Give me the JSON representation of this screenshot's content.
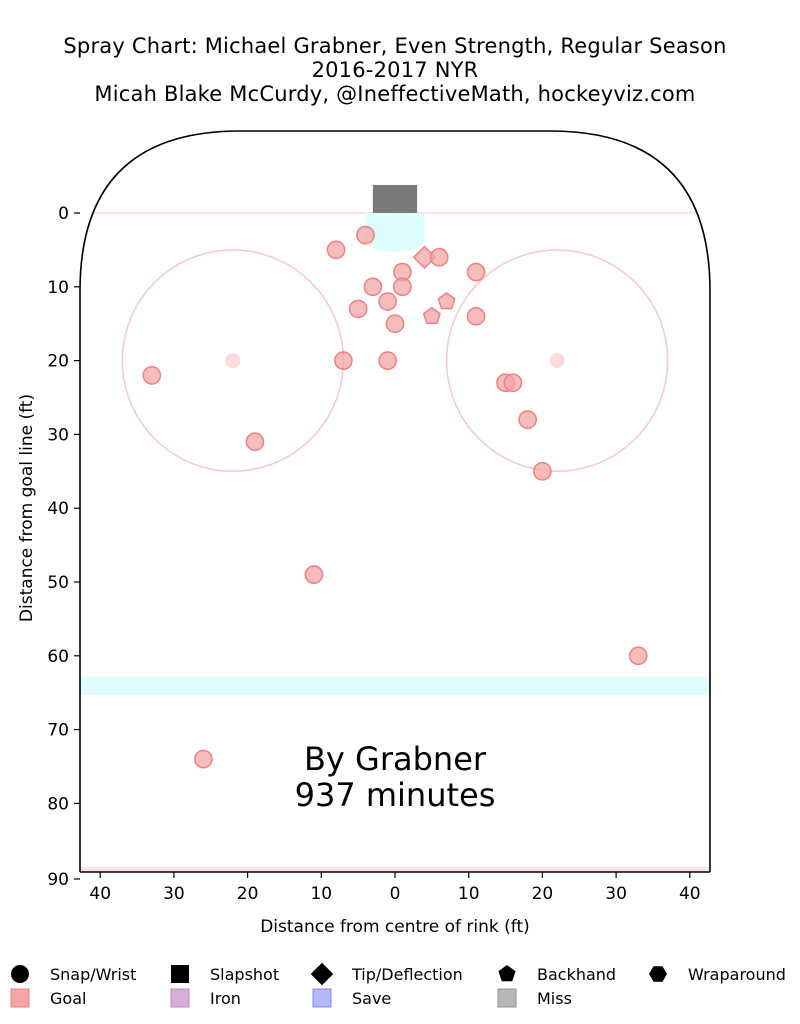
{
  "chart_data": {
    "type": "scatter",
    "title": "Spray Chart: Michael Grabner, Even Strength, Regular Season",
    "subtitle": "2016-2017 NYR",
    "credit": "Micah Blake McCurdy, @IneffectiveMath, hockeyviz.com",
    "xlabel": "Distance from centre of rink (ft)",
    "ylabel": "Distance from goal line (ft)",
    "xlim": [
      -42.5,
      42.5
    ],
    "ylim": [
      90,
      -11
    ],
    "x_ticks": [
      -40,
      -30,
      -20,
      -10,
      0,
      10,
      20,
      30,
      40
    ],
    "x_tick_labels": [
      "40",
      "30",
      "20",
      "10",
      "0",
      "10",
      "20",
      "30",
      "40"
    ],
    "y_ticks": [
      0,
      10,
      20,
      30,
      40,
      50,
      60,
      70,
      80,
      90
    ],
    "y_tick_labels": [
      "0",
      "10",
      "20",
      "30",
      "40",
      "50",
      "60",
      "70",
      "80",
      "90"
    ],
    "annotation": [
      "By Grabner",
      "937 minutes"
    ],
    "faceoff_circles": [
      {
        "x": -22,
        "y": 20,
        "r": 15
      },
      {
        "x": 22,
        "y": 20,
        "r": 15
      }
    ],
    "series": [
      {
        "name": "Goal",
        "color": "#f08080",
        "points": [
          {
            "x": -4,
            "y": 3,
            "shape": "circle"
          },
          {
            "x": -8,
            "y": 5,
            "shape": "circle"
          },
          {
            "x": 4,
            "y": 6,
            "shape": "diamond"
          },
          {
            "x": 6,
            "y": 6,
            "shape": "circle"
          },
          {
            "x": 1,
            "y": 8,
            "shape": "circle"
          },
          {
            "x": 11,
            "y": 8,
            "shape": "circle"
          },
          {
            "x": -3,
            "y": 10,
            "shape": "circle"
          },
          {
            "x": 1,
            "y": 10,
            "shape": "circle"
          },
          {
            "x": -1,
            "y": 12,
            "shape": "circle"
          },
          {
            "x": 7,
            "y": 12,
            "shape": "pentagon"
          },
          {
            "x": -5,
            "y": 13,
            "shape": "circle"
          },
          {
            "x": 5,
            "y": 14,
            "shape": "pentagon"
          },
          {
            "x": 11,
            "y": 14,
            "shape": "circle"
          },
          {
            "x": 0,
            "y": 15,
            "shape": "circle"
          },
          {
            "x": -7,
            "y": 20,
            "shape": "circle"
          },
          {
            "x": -1,
            "y": 20,
            "shape": "circle"
          },
          {
            "x": -33,
            "y": 22,
            "shape": "circle"
          },
          {
            "x": 15,
            "y": 23,
            "shape": "circle"
          },
          {
            "x": 16,
            "y": 23,
            "shape": "circle"
          },
          {
            "x": 18,
            "y": 28,
            "shape": "circle"
          },
          {
            "x": -19,
            "y": 31,
            "shape": "circle"
          },
          {
            "x": 20,
            "y": 35,
            "shape": "circle"
          },
          {
            "x": -11,
            "y": 49,
            "shape": "circle"
          },
          {
            "x": 33,
            "y": 60,
            "shape": "circle"
          },
          {
            "x": -26,
            "y": 74,
            "shape": "circle"
          }
        ]
      }
    ],
    "legend": {
      "placement": "bottom",
      "shapes": [
        {
          "label": "Snap/Wrist",
          "shape": "circle"
        },
        {
          "label": "Slapshot",
          "shape": "square"
        },
        {
          "label": "Tip/Deflection",
          "shape": "diamond"
        },
        {
          "label": "Backhand",
          "shape": "pentagon"
        },
        {
          "label": "Wraparound",
          "shape": "hexagon"
        }
      ],
      "outcomes": [
        {
          "label": "Goal",
          "color": "#f4a6a6",
          "edge": "#f08080"
        },
        {
          "label": "Iron",
          "color": "#d8aed8",
          "edge": "#c080c0"
        },
        {
          "label": "Save",
          "color": "#b4b8f4",
          "edge": "#8088f0"
        },
        {
          "label": "Miss",
          "color": "#b8b8b8",
          "edge": "#909090"
        }
      ]
    },
    "colors": {
      "goal_fill": "#f4a6a6",
      "goal_edge": "#f08080",
      "faceoff": "#f6c8c8",
      "crease": "#dffcfc",
      "blue_line": "#dffcfc",
      "red_line": "#fbe3e6",
      "net": "#7a7a7a"
    }
  }
}
